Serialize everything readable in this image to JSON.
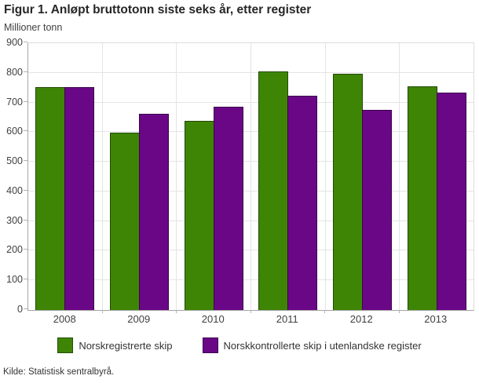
{
  "figure": {
    "title": "Figur 1. Anløpt bruttotonn siste seks år, etter register",
    "unit_label": "Millioner tonn",
    "source": "Kilde: Statistisk sentralbyrå."
  },
  "chart_data": {
    "type": "bar",
    "title": "Figur 1. Anløpt bruttotonn siste seks år, etter register",
    "xlabel": "",
    "ylabel": "Millioner tonn",
    "categories": [
      "2008",
      "2009",
      "2010",
      "2011",
      "2012",
      "2013"
    ],
    "series": [
      {
        "name": "Norskregistrerte skip",
        "color": "#3e8505",
        "values": [
          752,
          597,
          638,
          804,
          797,
          755
        ]
      },
      {
        "name": "Norskkontrollerte skip i utenlandske register",
        "color": "#6a0787",
        "values": [
          751,
          662,
          686,
          723,
          674,
          732
        ]
      }
    ],
    "ylim": [
      0,
      900
    ],
    "ytick_step": 100,
    "grid": true,
    "legend_position": "bottom"
  },
  "colors": {
    "series_green": "#3e8505",
    "series_purple": "#6a0787",
    "gridline": "#e4e4e4",
    "axis": "#a6a6a6",
    "text": "#404040"
  }
}
